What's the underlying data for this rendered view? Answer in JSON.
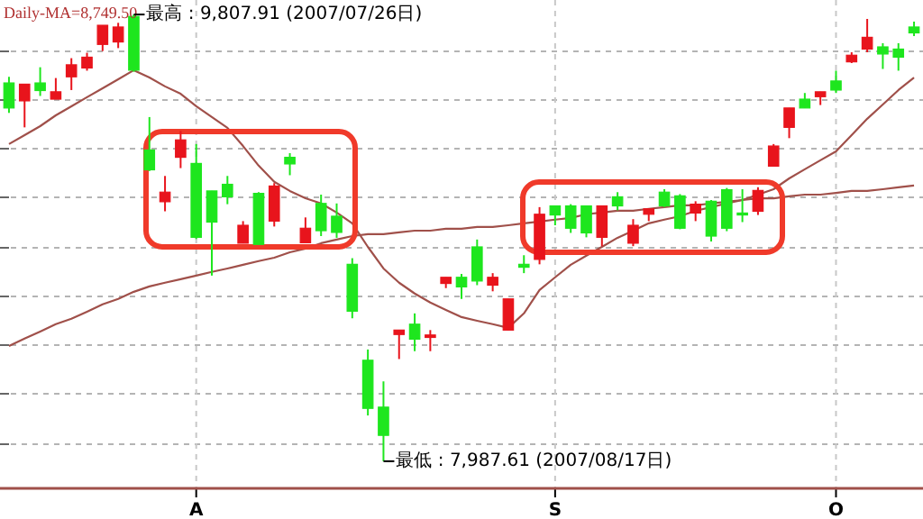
{
  "chart_data": {
    "type": "candlestick",
    "categories": [
      null,
      null,
      null,
      null,
      null,
      null,
      null,
      null,
      null,
      null,
      null,
      null,
      "A",
      null,
      null,
      null,
      null,
      null,
      null,
      null,
      null,
      null,
      null,
      null,
      null,
      null,
      null,
      null,
      null,
      null,
      null,
      null,
      null,
      null,
      null,
      "S",
      null,
      null,
      null,
      null,
      null,
      null,
      null,
      null,
      null,
      null,
      null,
      null,
      null,
      null,
      null,
      null,
      null,
      "O",
      null,
      null,
      null,
      null,
      null
    ],
    "ohlc": [
      [
        9529,
        9554,
        9407,
        9427
      ],
      [
        9456,
        9524,
        9348,
        9524
      ],
      [
        9529,
        9593,
        9476,
        9498
      ],
      [
        9463,
        9549,
        9463,
        9493
      ],
      [
        9554,
        9630,
        9500,
        9603
      ],
      [
        9590,
        9652,
        9579,
        9634
      ],
      [
        9686,
        9764,
        9659,
        9764
      ],
      [
        9696,
        9774,
        9671,
        9757
      ],
      [
        9800,
        9807.91,
        9575,
        9581
      ],
      [
        9256,
        9390,
        9170,
        9175
      ],
      [
        9045,
        9150,
        9006,
        9084
      ],
      [
        9226,
        9333,
        9182,
        9297
      ],
      [
        9201,
        9280,
        8893,
        8900
      ],
      [
        9089,
        9089,
        8744,
        8962
      ],
      [
        9116,
        9150,
        9035,
        9065
      ],
      [
        8876,
        8966,
        8876,
        8949
      ],
      [
        9079,
        9084,
        8871,
        8871
      ],
      [
        8966,
        9121,
        8944,
        9109
      ],
      [
        9226,
        9243,
        9153,
        9199
      ],
      [
        8878,
        8981,
        8878,
        8937
      ],
      [
        9038,
        9074,
        8905,
        8927
      ],
      [
        8986,
        9038,
        8898,
        8920
      ],
      [
        8790,
        8815,
        8570,
        8599
      ],
      [
        8399,
        8443,
        8174,
        8203
      ],
      [
        8208,
        8313,
        7987.61,
        8093
      ],
      [
        8504,
        8522,
        8404,
        8522
      ],
      [
        8546,
        8590,
        8436,
        8485
      ],
      [
        8492,
        8522,
        8436,
        8502
      ],
      [
        8712,
        8737,
        8693,
        8737
      ],
      [
        8737,
        8751,
        8649,
        8698
      ],
      [
        8861,
        8891,
        8705,
        8722
      ],
      [
        8705,
        8754,
        8680,
        8737
      ],
      [
        8522,
        8649,
        8522,
        8649
      ],
      [
        8790,
        8827,
        8754,
        8778
      ],
      [
        8810,
        9023,
        8790,
        8994
      ],
      [
        9028,
        9028,
        8949,
        8991
      ],
      [
        9028,
        9035,
        8918,
        8937
      ],
      [
        9028,
        9028,
        8900,
        8918
      ],
      [
        8900,
        9028,
        8864,
        9028
      ],
      [
        9065,
        9084,
        9010,
        9028
      ],
      [
        8876,
        8974,
        8864,
        8949
      ],
      [
        8994,
        9016,
        8966,
        9016
      ],
      [
        9084,
        9096,
        9023,
        9028
      ],
      [
        9069,
        9076,
        8933,
        8937
      ],
      [
        8999,
        9047,
        8966,
        9035
      ],
      [
        9047,
        9052,
        8883,
        8905
      ],
      [
        9094,
        9101,
        8925,
        8937
      ],
      [
        8999,
        9096,
        8962,
        8991
      ],
      [
        9006,
        9104,
        8991,
        9091
      ],
      [
        9190,
        9280,
        9190,
        9272
      ],
      [
        9348,
        9427,
        9304,
        9427
      ],
      [
        9463,
        9488,
        9427,
        9427
      ],
      [
        9473,
        9493,
        9439,
        9493
      ],
      [
        9537,
        9579,
        9488,
        9500
      ],
      [
        9615,
        9654,
        9610,
        9642
      ],
      [
        9667,
        9790,
        9654,
        9715
      ],
      [
        9676,
        9691,
        9586,
        9647
      ],
      [
        9667,
        9691,
        9579,
        9634
      ],
      [
        9757,
        9779,
        9720,
        9733
      ]
    ],
    "colors": [
      "#1ee61e",
      "#e8141c",
      "#1ee61e",
      "#e8141c",
      "#e8141c",
      "#e8141c",
      "#e8141c",
      "#e8141c",
      "#1ee61e",
      "#1ee61e",
      "#e8141c",
      "#e8141c",
      "#1ee61e",
      "#1ee61e",
      "#1ee61e",
      "#e8141c",
      "#1ee61e",
      "#e8141c",
      "#1ee61e",
      "#e8141c",
      "#1ee61e",
      "#1ee61e",
      "#1ee61e",
      "#1ee61e",
      "#1ee61e",
      "#e8141c",
      "#1ee61e",
      "#e8141c",
      "#e8141c",
      "#1ee61e",
      "#1ee61e",
      "#e8141c",
      "#e8141c",
      "#1ee61e",
      "#e8141c",
      "#1ee61e",
      "#1ee61e",
      "#1ee61e",
      "#e8141c",
      "#1ee61e",
      "#e8141c",
      "#e8141c",
      "#1ee61e",
      "#1ee61e",
      "#e8141c",
      "#1ee61e",
      "#1ee61e",
      "#1ee61e",
      "#e8141c",
      "#e8141c",
      "#e8141c",
      "#1ee61e",
      "#e8141c",
      "#1ee61e",
      "#e8141c",
      "#e8141c",
      "#1ee61e",
      "#1ee61e",
      "#1ee61e"
    ],
    "series": [
      {
        "type": "line",
        "color": "#a0504a",
        "values": [
          9280,
          9316,
          9353,
          9397,
          9434,
          9471,
          9507,
          9544,
          9581,
          9551,
          9515,
          9485,
          9434,
          9390,
          9346,
          9272,
          9192,
          9126,
          9089,
          9059,
          9038,
          9001,
          8957,
          8861,
          8773,
          8715,
          8671,
          8634,
          8604,
          8575,
          8560,
          8546,
          8531,
          8590,
          8685,
          8737,
          8788,
          8825,
          8861,
          8898,
          8927,
          8957,
          8972,
          8986,
          9008,
          9023,
          9038,
          9052,
          9074,
          9096,
          9140,
          9177,
          9214,
          9250,
          9316,
          9383,
          9441,
          9500,
          9551
        ]
      },
      {
        "type": "line",
        "color": "#a0504a",
        "values": [
          8457,
          8487,
          8516,
          8546,
          8568,
          8597,
          8627,
          8649,
          8678,
          8700,
          8715,
          8729,
          8744,
          8759,
          8773,
          8788,
          8803,
          8817,
          8839,
          8854,
          8876,
          8891,
          8905,
          8913,
          8913,
          8920,
          8927,
          8927,
          8935,
          8935,
          8942,
          8942,
          8949,
          8957,
          8964,
          8972,
          8979,
          8994,
          9001,
          9008,
          9008,
          9016,
          9023,
          9030,
          9030,
          9038,
          9045,
          9052,
          9059,
          9059,
          9067,
          9074,
          9074,
          9081,
          9089,
          9089,
          9096,
          9104,
          9111
        ]
      }
    ],
    "ylim": [
      7877,
      9867
    ],
    "yticks": [
      {
        "value": 8060,
        "label": null
      },
      {
        "value": 8260,
        "label": null
      },
      {
        "value": 8460,
        "label": null
      },
      {
        "value": 8660,
        "label": null
      },
      {
        "value": 8860,
        "label": null
      },
      {
        "value": 9060,
        "label": null
      },
      {
        "value": 9260,
        "label": null
      },
      {
        "value": 9460,
        "label": null
      },
      {
        "value": 9660,
        "label": null
      }
    ],
    "grid": true,
    "tick_labels": "x",
    "annotations": [
      "Daily-MA=8,749.50",
      "最高 : 9,807.91 (2007/07/26日)",
      "最低 : 7,987.61 (2007/08/17日)"
    ]
  }
}
